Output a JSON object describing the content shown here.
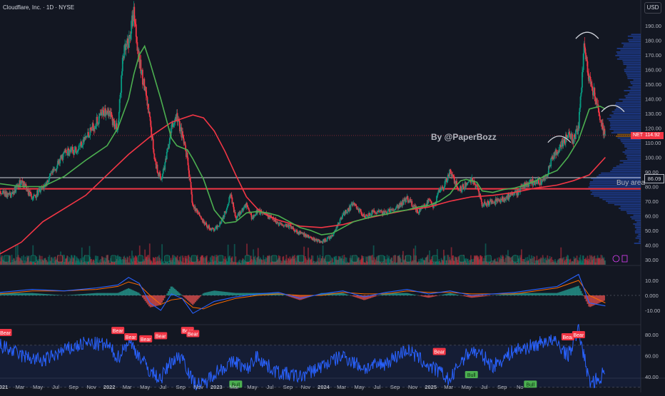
{
  "header": {
    "symbol_line": "Cloudflare, Inc. · 1D · NYSE",
    "currency_button": "USD"
  },
  "annotations": {
    "watermark": "By @PaperBozz",
    "buy_area_label": "Buy area",
    "buy_area_level": "86.09",
    "last_price_ticker": "NET",
    "last_price": "114.92"
  },
  "colors": {
    "background": "#131722",
    "up_candle": "#089981",
    "down_candle": "#f23645",
    "ma_fast": "#4caf50",
    "ma_slow": "#f23645",
    "macd": "#2962ff",
    "macd_signal": "#ff6d00",
    "rsi": "#2962ff",
    "bear_label": "#f23645",
    "bull_label": "#4caf50"
  },
  "chart_data": [
    {
      "type": "candlestick",
      "axis_side": "right",
      "ylim": [
        25,
        200
      ],
      "y_ticks": [
        "190.00",
        "180.00",
        "170.00",
        "160.00",
        "150.00",
        "140.00",
        "130.00",
        "120.00",
        "110.00",
        "100.00",
        "90.00",
        "80.00",
        "70.00",
        "60.00",
        "50.00",
        "40.00",
        "30.00"
      ],
      "x_ticks": [
        "2021",
        "Mar",
        "May",
        "Jul",
        "Sep",
        "Nov",
        "2022",
        "Mar",
        "May",
        "Jul",
        "Sep",
        "Nov",
        "2023",
        "Mar",
        "May",
        "Jul",
        "Sep",
        "Nov",
        "2024",
        "Mar",
        "May",
        "Jul",
        "Sep",
        "Nov",
        "2025",
        "Mar",
        "May",
        "Jul",
        "Sep",
        "No"
      ],
      "price_path": [
        [
          2020.0,
          75
        ],
        [
          2020.1,
          74
        ],
        [
          2020.2,
          84
        ],
        [
          2020.3,
          72
        ],
        [
          2020.4,
          79
        ],
        [
          2020.5,
          90
        ],
        [
          2020.6,
          103
        ],
        [
          2020.7,
          105
        ],
        [
          2020.8,
          113
        ],
        [
          2020.9,
          124
        ],
        [
          2021.0,
          134
        ],
        [
          2021.05,
          125
        ],
        [
          2021.1,
          120
        ],
        [
          2021.15,
          170
        ],
        [
          2021.2,
          178
        ],
        [
          2021.25,
          200
        ],
        [
          2021.3,
          165
        ],
        [
          2021.35,
          148
        ],
        [
          2021.4,
          124
        ],
        [
          2021.45,
          96
        ],
        [
          2021.5,
          85
        ],
        [
          2021.55,
          98
        ],
        [
          2021.6,
          120
        ],
        [
          2021.65,
          128
        ],
        [
          2021.7,
          115
        ],
        [
          2021.75,
          98
        ],
        [
          2021.8,
          66
        ],
        [
          2021.85,
          63
        ],
        [
          2021.9,
          55
        ],
        [
          2021.95,
          52
        ],
        [
          2022.0,
          50
        ],
        [
          2022.05,
          55
        ],
        [
          2022.1,
          62
        ],
        [
          2022.15,
          75
        ],
        [
          2022.2,
          58
        ],
        [
          2022.25,
          63
        ],
        [
          2022.3,
          68
        ],
        [
          2022.35,
          59
        ],
        [
          2022.4,
          63
        ],
        [
          2022.5,
          60
        ],
        [
          2022.6,
          55
        ],
        [
          2022.7,
          53
        ],
        [
          2022.8,
          48
        ],
        [
          2022.9,
          45
        ],
        [
          2023.0,
          42
        ],
        [
          2023.1,
          46
        ],
        [
          2023.2,
          61
        ],
        [
          2023.3,
          68
        ],
        [
          2023.4,
          60
        ],
        [
          2023.5,
          63
        ],
        [
          2023.6,
          62
        ],
        [
          2023.7,
          65
        ],
        [
          2023.8,
          72
        ],
        [
          2023.9,
          63
        ],
        [
          2024.0,
          70
        ],
        [
          2024.05,
          66
        ],
        [
          2024.1,
          78
        ],
        [
          2024.15,
          81
        ],
        [
          2024.2,
          90
        ],
        [
          2024.25,
          82
        ],
        [
          2024.3,
          78
        ],
        [
          2024.4,
          85
        ],
        [
          2024.45,
          80
        ],
        [
          2024.5,
          68
        ],
        [
          2024.6,
          69
        ],
        [
          2024.7,
          72
        ],
        [
          2024.8,
          74
        ],
        [
          2024.9,
          81
        ],
        [
          2025.0,
          84
        ],
        [
          2025.05,
          83
        ],
        [
          2025.1,
          86
        ],
        [
          2025.15,
          100
        ],
        [
          2025.2,
          103
        ],
        [
          2025.25,
          110
        ],
        [
          2025.3,
          115
        ],
        [
          2025.35,
          112
        ],
        [
          2025.4,
          120
        ],
        [
          2025.45,
          176
        ],
        [
          2025.5,
          153
        ],
        [
          2025.55,
          142
        ],
        [
          2025.6,
          125
        ],
        [
          2025.65,
          114
        ]
      ],
      "ma_fast_path": [
        [
          2020.0,
          82
        ],
        [
          2020.2,
          80
        ],
        [
          2020.4,
          80
        ],
        [
          2020.6,
          87
        ],
        [
          2020.8,
          98
        ],
        [
          2021.0,
          108
        ],
        [
          2021.1,
          120
        ],
        [
          2021.2,
          140
        ],
        [
          2021.25,
          157
        ],
        [
          2021.3,
          170
        ],
        [
          2021.35,
          176
        ],
        [
          2021.4,
          165
        ],
        [
          2021.5,
          140
        ],
        [
          2021.6,
          113
        ],
        [
          2021.65,
          108
        ],
        [
          2021.75,
          105
        ],
        [
          2021.8,
          99
        ],
        [
          2021.9,
          85
        ],
        [
          2022.0,
          64
        ],
        [
          2022.1,
          55
        ],
        [
          2022.2,
          56
        ],
        [
          2022.3,
          62
        ],
        [
          2022.4,
          63
        ],
        [
          2022.5,
          62
        ],
        [
          2022.6,
          60
        ],
        [
          2022.7,
          56
        ],
        [
          2022.8,
          52
        ],
        [
          2022.9,
          50
        ],
        [
          2023.0,
          47
        ],
        [
          2023.1,
          48
        ],
        [
          2023.2,
          52
        ],
        [
          2023.3,
          56
        ],
        [
          2023.4,
          58
        ],
        [
          2023.5,
          60
        ],
        [
          2023.6,
          61
        ],
        [
          2023.7,
          63
        ],
        [
          2023.8,
          64
        ],
        [
          2023.9,
          66
        ],
        [
          2024.0,
          67
        ],
        [
          2024.1,
          70
        ],
        [
          2024.2,
          75
        ],
        [
          2024.25,
          80
        ],
        [
          2024.3,
          84
        ],
        [
          2024.35,
          85
        ],
        [
          2024.45,
          83
        ],
        [
          2024.5,
          77
        ],
        [
          2024.6,
          76
        ],
        [
          2024.7,
          78
        ],
        [
          2024.8,
          79
        ],
        [
          2024.9,
          81
        ],
        [
          2025.0,
          84
        ],
        [
          2025.1,
          88
        ],
        [
          2025.2,
          91
        ],
        [
          2025.3,
          100
        ],
        [
          2025.4,
          112
        ],
        [
          2025.5,
          133
        ],
        [
          2025.6,
          135
        ],
        [
          2025.65,
          133
        ]
      ],
      "ma_slow_path": [
        [
          2020.0,
          34
        ],
        [
          2020.2,
          42
        ],
        [
          2020.4,
          56
        ],
        [
          2020.6,
          65
        ],
        [
          2020.8,
          74
        ],
        [
          2021.0,
          88
        ],
        [
          2021.2,
          102
        ],
        [
          2021.4,
          114
        ],
        [
          2021.6,
          124
        ],
        [
          2021.8,
          129
        ],
        [
          2021.9,
          127
        ],
        [
          2022.0,
          118
        ],
        [
          2022.1,
          104
        ],
        [
          2022.2,
          88
        ],
        [
          2022.3,
          73
        ],
        [
          2022.4,
          65
        ],
        [
          2022.5,
          60
        ],
        [
          2022.6,
          57
        ],
        [
          2022.8,
          53
        ],
        [
          2023.0,
          52
        ],
        [
          2023.2,
          54
        ],
        [
          2023.4,
          58
        ],
        [
          2023.6,
          61
        ],
        [
          2023.8,
          64
        ],
        [
          2024.0,
          66
        ],
        [
          2024.2,
          70
        ],
        [
          2024.4,
          73
        ],
        [
          2024.6,
          74
        ],
        [
          2024.8,
          76
        ],
        [
          2025.0,
          79
        ],
        [
          2025.2,
          81
        ],
        [
          2025.35,
          84
        ],
        [
          2025.5,
          88
        ],
        [
          2025.65,
          100
        ]
      ],
      "horizontal_levels": [
        86.09,
        78.5,
        114.92
      ],
      "volume_profile": "right edge",
      "series": [
        {
          "name": "Price (NET)",
          "kind": "candles"
        },
        {
          "name": "Fast MA",
          "kind": "line"
        },
        {
          "name": "Slow MA",
          "kind": "line"
        }
      ]
    },
    {
      "type": "line",
      "panel": "MACD",
      "ylim": [
        -15,
        18
      ],
      "y_ticks": [
        "10.00",
        "0.000",
        "-10.00"
      ],
      "macd_path": [
        [
          2020.0,
          2
        ],
        [
          2020.3,
          4
        ],
        [
          2020.6,
          3
        ],
        [
          2020.9,
          5
        ],
        [
          2021.1,
          7
        ],
        [
          2021.2,
          12
        ],
        [
          2021.3,
          8
        ],
        [
          2021.4,
          -5
        ],
        [
          2021.5,
          -10
        ],
        [
          2021.6,
          1
        ],
        [
          2021.7,
          -2
        ],
        [
          2021.8,
          -12
        ],
        [
          2021.9,
          -8
        ],
        [
          2022.0,
          -4
        ],
        [
          2022.2,
          -1
        ],
        [
          2022.4,
          1
        ],
        [
          2022.6,
          2
        ],
        [
          2022.8,
          -2
        ],
        [
          2023.0,
          1
        ],
        [
          2023.2,
          3
        ],
        [
          2023.4,
          -1
        ],
        [
          2023.6,
          2
        ],
        [
          2023.8,
          4
        ],
        [
          2024.0,
          1
        ],
        [
          2024.2,
          3
        ],
        [
          2024.4,
          0
        ],
        [
          2024.6,
          1
        ],
        [
          2024.8,
          2
        ],
        [
          2025.0,
          4
        ],
        [
          2025.2,
          6
        ],
        [
          2025.4,
          14
        ],
        [
          2025.5,
          -5
        ],
        [
          2025.65,
          -7
        ]
      ],
      "signal_path": [
        [
          2020.0,
          1
        ],
        [
          2020.3,
          3
        ],
        [
          2020.6,
          3
        ],
        [
          2020.9,
          4
        ],
        [
          2021.1,
          6
        ],
        [
          2021.2,
          9
        ],
        [
          2021.3,
          7
        ],
        [
          2021.4,
          0
        ],
        [
          2021.5,
          -6
        ],
        [
          2021.6,
          -3
        ],
        [
          2021.7,
          -2
        ],
        [
          2021.8,
          -8
        ],
        [
          2021.9,
          -9
        ],
        [
          2022.0,
          -6
        ],
        [
          2022.2,
          -2
        ],
        [
          2022.4,
          0
        ],
        [
          2022.6,
          1
        ],
        [
          2022.8,
          0
        ],
        [
          2023.0,
          0
        ],
        [
          2023.2,
          2
        ],
        [
          2023.4,
          1
        ],
        [
          2023.6,
          1
        ],
        [
          2023.8,
          3
        ],
        [
          2024.0,
          2
        ],
        [
          2024.2,
          2
        ],
        [
          2024.4,
          1
        ],
        [
          2024.6,
          1
        ],
        [
          2024.8,
          1
        ],
        [
          2025.0,
          3
        ],
        [
          2025.2,
          5
        ],
        [
          2025.4,
          10
        ],
        [
          2025.5,
          0
        ],
        [
          2025.65,
          -5
        ]
      ]
    },
    {
      "type": "line",
      "panel": "RSI",
      "ylim": [
        25,
        92
      ],
      "y_ticks": [
        "80.00",
        "60.00",
        "40.00"
      ],
      "band": [
        30,
        70
      ],
      "rsi_path": [
        [
          2020.0,
          70
        ],
        [
          2020.2,
          60
        ],
        [
          2020.4,
          55
        ],
        [
          2020.6,
          65
        ],
        [
          2020.8,
          72
        ],
        [
          2021.0,
          70
        ],
        [
          2021.1,
          58
        ],
        [
          2021.2,
          74
        ],
        [
          2021.3,
          60
        ],
        [
          2021.4,
          45
        ],
        [
          2021.5,
          38
        ],
        [
          2021.6,
          55
        ],
        [
          2021.7,
          60
        ],
        [
          2021.8,
          35
        ],
        [
          2021.9,
          32
        ],
        [
          2022.0,
          44
        ],
        [
          2022.2,
          55
        ],
        [
          2022.3,
          46
        ],
        [
          2022.4,
          60
        ],
        [
          2022.5,
          50
        ],
        [
          2022.6,
          44
        ],
        [
          2022.8,
          40
        ],
        [
          2023.0,
          50
        ],
        [
          2023.2,
          60
        ],
        [
          2023.4,
          48
        ],
        [
          2023.6,
          53
        ],
        [
          2023.8,
          66
        ],
        [
          2024.0,
          50
        ],
        [
          2024.1,
          45
        ],
        [
          2024.2,
          36
        ],
        [
          2024.3,
          55
        ],
        [
          2024.4,
          65
        ],
        [
          2024.5,
          60
        ],
        [
          2024.6,
          50
        ],
        [
          2024.8,
          65
        ],
        [
          2025.0,
          70
        ],
        [
          2025.1,
          75
        ],
        [
          2025.2,
          72
        ],
        [
          2025.3,
          60
        ],
        [
          2025.4,
          85
        ],
        [
          2025.5,
          35
        ],
        [
          2025.6,
          38
        ],
        [
          2025.65,
          48
        ]
      ],
      "signal_labels": [
        {
          "text": "Bear",
          "x": 2020.05,
          "y": 82
        },
        {
          "text": "Bear",
          "x": 2021.1,
          "y": 84
        },
        {
          "text": "Bear",
          "x": 2021.22,
          "y": 78
        },
        {
          "text": "Bear",
          "x": 2021.36,
          "y": 76
        },
        {
          "text": "Bear",
          "x": 2021.5,
          "y": 79
        },
        {
          "text": "Bear",
          "x": 2021.75,
          "y": 84
        },
        {
          "text": "Bear",
          "x": 2021.8,
          "y": 81
        },
        {
          "text": "Bull",
          "x": 2022.2,
          "y": 33
        },
        {
          "text": "Bear",
          "x": 2024.1,
          "y": 64
        },
        {
          "text": "Bull",
          "x": 2024.4,
          "y": 42
        },
        {
          "text": "Bull",
          "x": 2024.95,
          "y": 33
        },
        {
          "text": "Bear",
          "x": 2025.3,
          "y": 78
        },
        {
          "text": "Bear",
          "x": 2025.4,
          "y": 80
        }
      ]
    }
  ]
}
